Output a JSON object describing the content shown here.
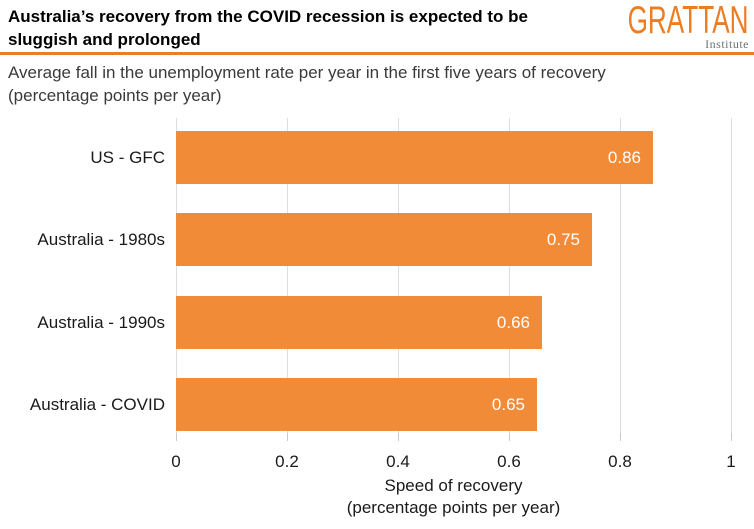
{
  "header": {
    "title_line1": "Australia’s recovery from the COVID recession is expected to be",
    "title_line2": "sluggish and prolonged",
    "logo": {
      "text": "GRATTAN",
      "subtext": "Institute",
      "color": "#ED7D23",
      "subtext_color": "#6E7472"
    }
  },
  "subtitle": {
    "line1": "Average fall in the unemployment rate per year in the first five years of recovery",
    "line2": "(percentage points per year)"
  },
  "chart_data": {
    "type": "bar",
    "orientation": "horizontal",
    "title": "Australia’s recovery from the COVID recession is expected to be sluggish and prolonged",
    "subtitle": "Average fall in the unemployment rate per year in the first five years of recovery (percentage points per year)",
    "categories": [
      "US - GFC",
      "Australia - 1980s",
      "Australia - 1990s",
      "Australia - COVID"
    ],
    "values": [
      0.86,
      0.75,
      0.66,
      0.65
    ],
    "value_labels": [
      "0.86",
      "0.75",
      "0.66",
      "0.65"
    ],
    "xlabel_line1": "Speed of recovery",
    "xlabel_line2": "(percentage points per year)",
    "xlim": [
      0,
      1
    ],
    "xticks": [
      0,
      0.2,
      0.4,
      0.6,
      0.8,
      1
    ],
    "xtick_labels": [
      "0",
      "0.2",
      "0.4",
      "0.6",
      "0.8",
      "1"
    ],
    "grid": true,
    "legend": false,
    "bar_color": "#F28B38",
    "value_label_color": "#FFFFFF",
    "gridline_color": "#DEDEDE",
    "tick_color": "#C9C9C9",
    "text_color": "#1A1A1A"
  }
}
